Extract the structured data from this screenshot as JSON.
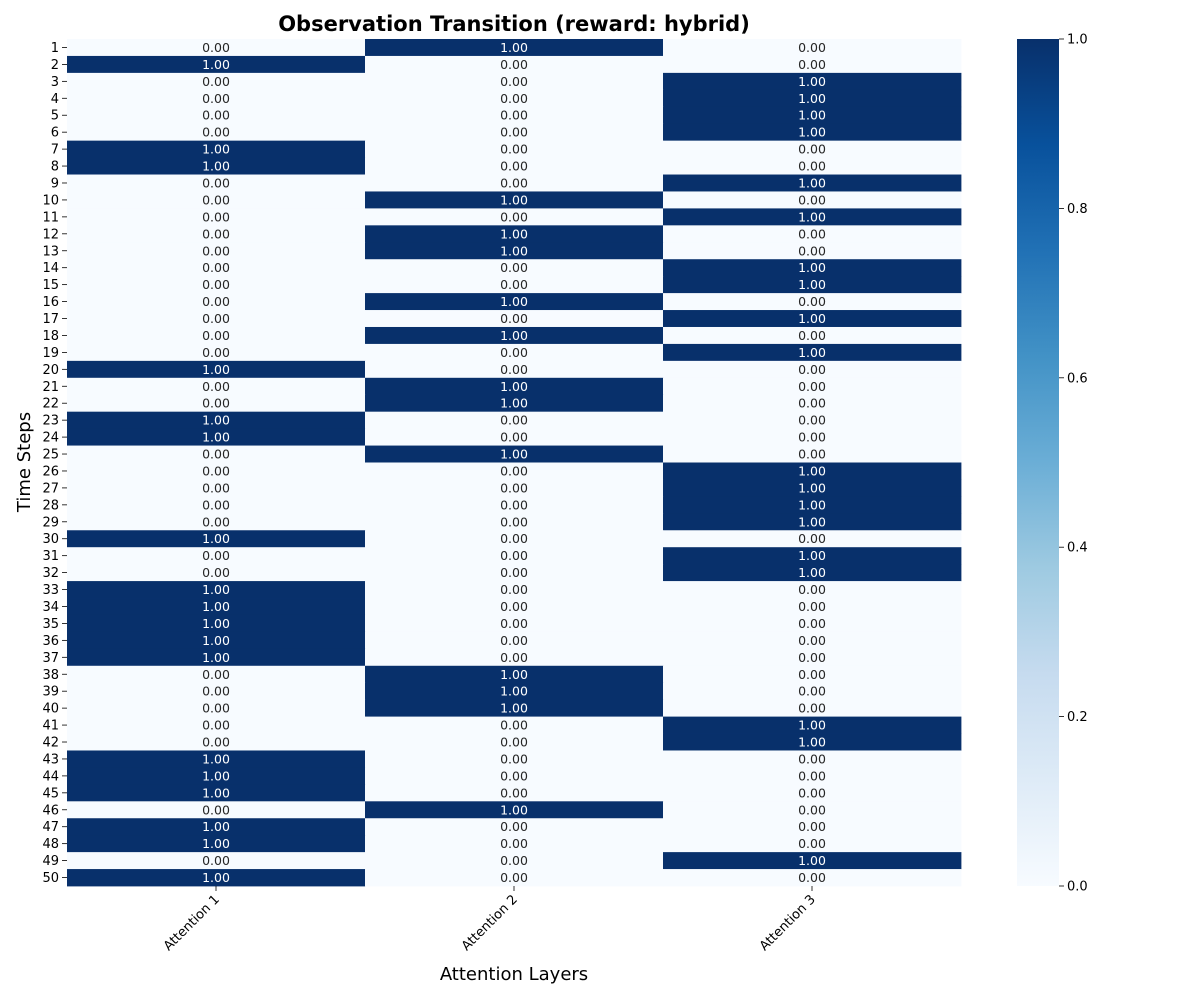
{
  "chart_data": {
    "type": "heatmap",
    "title": "Observation Transition (reward: hybrid)",
    "xlabel": "Attention Layers",
    "ylabel": "Time Steps",
    "columns": [
      "Attention 1",
      "Attention 2",
      "Attention 3"
    ],
    "rows": [
      "1",
      "2",
      "3",
      "4",
      "5",
      "6",
      "7",
      "8",
      "9",
      "10",
      "11",
      "12",
      "13",
      "14",
      "15",
      "16",
      "17",
      "18",
      "19",
      "20",
      "21",
      "22",
      "23",
      "24",
      "25",
      "26",
      "27",
      "28",
      "29",
      "30",
      "31",
      "32",
      "33",
      "34",
      "35",
      "36",
      "37",
      "38",
      "39",
      "40",
      "41",
      "42",
      "43",
      "44",
      "45",
      "46",
      "47",
      "48",
      "49",
      "50"
    ],
    "values": [
      [
        0,
        1,
        0
      ],
      [
        1,
        0,
        0
      ],
      [
        0,
        0,
        1
      ],
      [
        0,
        0,
        1
      ],
      [
        0,
        0,
        1
      ],
      [
        0,
        0,
        1
      ],
      [
        1,
        0,
        0
      ],
      [
        1,
        0,
        0
      ],
      [
        0,
        0,
        1
      ],
      [
        0,
        1,
        0
      ],
      [
        0,
        0,
        1
      ],
      [
        0,
        1,
        0
      ],
      [
        0,
        1,
        0
      ],
      [
        0,
        0,
        1
      ],
      [
        0,
        0,
        1
      ],
      [
        0,
        1,
        0
      ],
      [
        0,
        0,
        1
      ],
      [
        0,
        1,
        0
      ],
      [
        0,
        0,
        1
      ],
      [
        1,
        0,
        0
      ],
      [
        0,
        1,
        0
      ],
      [
        0,
        1,
        0
      ],
      [
        1,
        0,
        0
      ],
      [
        1,
        0,
        0
      ],
      [
        0,
        1,
        0
      ],
      [
        0,
        0,
        1
      ],
      [
        0,
        0,
        1
      ],
      [
        0,
        0,
        1
      ],
      [
        0,
        0,
        1
      ],
      [
        1,
        0,
        0
      ],
      [
        0,
        0,
        1
      ],
      [
        0,
        0,
        1
      ],
      [
        1,
        0,
        0
      ],
      [
        1,
        0,
        0
      ],
      [
        1,
        0,
        0
      ],
      [
        1,
        0,
        0
      ],
      [
        1,
        0,
        0
      ],
      [
        0,
        1,
        0
      ],
      [
        0,
        1,
        0
      ],
      [
        0,
        1,
        0
      ],
      [
        0,
        0,
        1
      ],
      [
        0,
        0,
        1
      ],
      [
        1,
        0,
        0
      ],
      [
        1,
        0,
        0
      ],
      [
        1,
        0,
        0
      ],
      [
        0,
        1,
        0
      ],
      [
        1,
        0,
        0
      ],
      [
        1,
        0,
        0
      ],
      [
        0,
        0,
        1
      ],
      [
        1,
        0,
        0
      ]
    ],
    "value_format": "0.00",
    "colormap": "Blues",
    "colorbar": {
      "min": 0.0,
      "max": 1.0,
      "ticks": [
        "0.0",
        "0.2",
        "0.4",
        "0.6",
        "0.8",
        "1.0"
      ]
    },
    "colors": {
      "low": "#f7fbff",
      "high": "#08306b"
    }
  }
}
